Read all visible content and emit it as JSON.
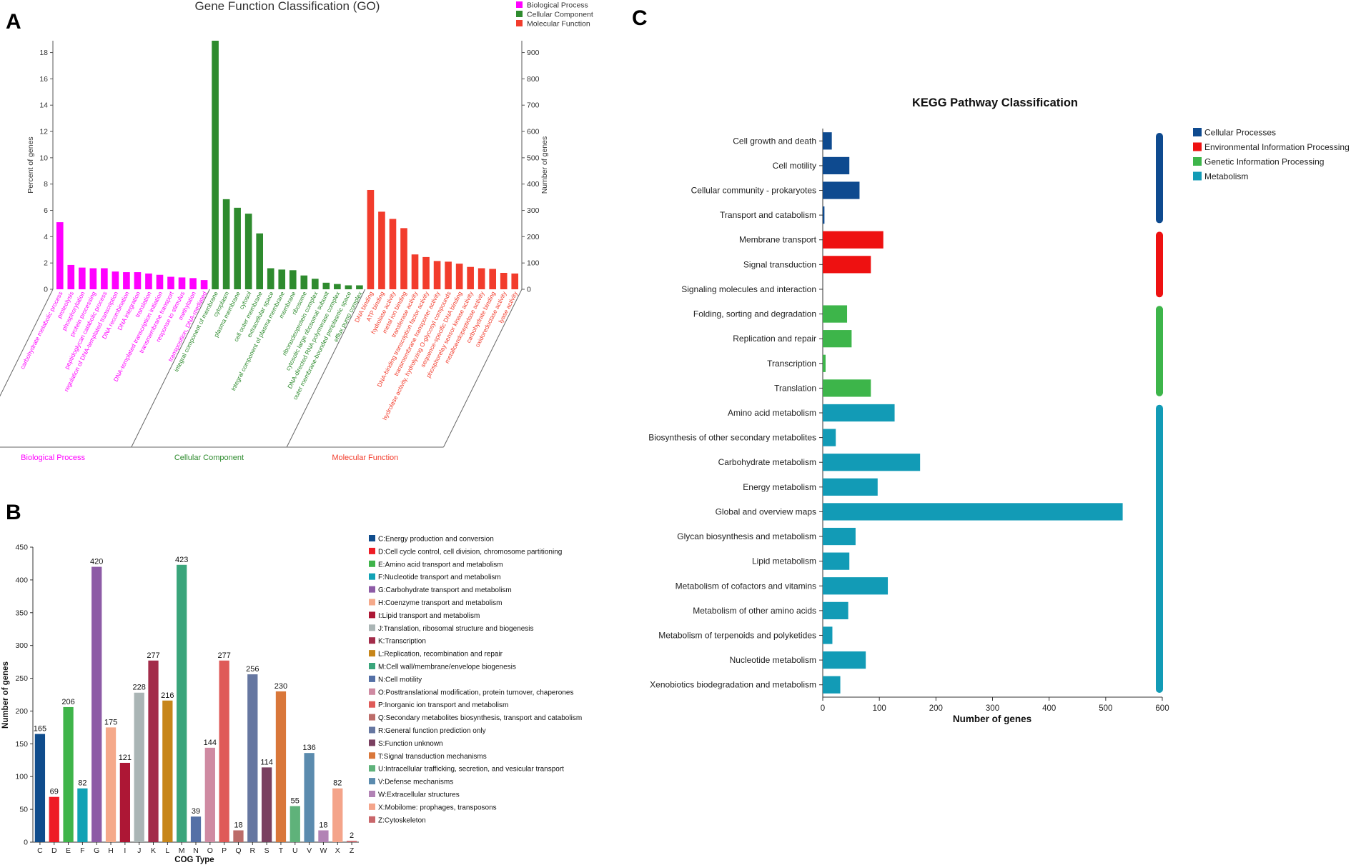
{
  "panel_labels": {
    "a": "A",
    "b": "B",
    "c": "C"
  },
  "chart_data": [
    {
      "panel": "A",
      "type": "bar",
      "title": "Gene Function Classification (GO)",
      "ylabel_left": "Percent of genes",
      "ylabel_right": "Number of genes",
      "y_left_ticks": [
        0,
        2,
        4,
        6,
        8,
        10,
        12,
        14,
        16,
        18
      ],
      "y_right_ticks": [
        0,
        100,
        200,
        300,
        400,
        500,
        600,
        700,
        800,
        900
      ],
      "y_left_max": 18.9,
      "legend": [
        {
          "name": "Biological Process",
          "color": "#ff00ff"
        },
        {
          "name": "Cellular Component",
          "color": "#2e8b2e"
        },
        {
          "name": "Molecular Function",
          "color": "#f23c2c"
        }
      ],
      "groups": [
        {
          "name": "Biological Process",
          "color": "#ff00ff",
          "categories": [
            "carbohydrate metabolic process",
            "proteolysis",
            "phosphorylation",
            "protein processing",
            "peptidoglycan catabolic process",
            "regulation of DNA-templated transcription",
            "DNA recombination",
            "DNA integration",
            "translation",
            "DNA-templated transcription initiation",
            "transmembrane transport",
            "response to stimulus",
            "methylation",
            "transposition, DNA-mediated"
          ],
          "values": [
            5.1,
            1.85,
            1.65,
            1.6,
            1.6,
            1.35,
            1.3,
            1.3,
            1.2,
            1.1,
            0.95,
            0.9,
            0.85,
            0.7
          ]
        },
        {
          "name": "Cellular Component",
          "color": "#2e8b2e",
          "categories": [
            "integral component of membrane",
            "cytoplasm",
            "plasma membrane",
            "cytosol",
            "cell outer membrane",
            "extracellular space",
            "integral component of plasma membrane",
            "membrane",
            "ribosome",
            "ribonucleoprotein complex",
            "cytosolic large ribosomal subunit",
            "DNA-directed RNA polymerase complex",
            "outer membrane-bounded periplasmic space",
            "efflux pump complex"
          ],
          "values": [
            18.9,
            6.85,
            6.2,
            5.75,
            4.25,
            1.6,
            1.5,
            1.45,
            1.05,
            0.8,
            0.5,
            0.4,
            0.3,
            0.3
          ]
        },
        {
          "name": "Molecular Function",
          "color": "#f23c2c",
          "categories": [
            "DNA binding",
            "ATP binding",
            "hydrolase activity",
            "metal ion binding",
            "transferase activity",
            "DNA-binding transcription factor activity",
            "transmembrane transporter activity",
            "hydrolase activity, hydrolyzing O-glycosyl compounds",
            "sequence-specific DNA binding",
            "phosphorelay sensor kinase activity",
            "metalloendopeptidase activity",
            "carbohydrate binding",
            "oxidoreductase activity",
            "lyase activity"
          ],
          "values": [
            7.55,
            5.9,
            5.35,
            4.65,
            2.65,
            2.45,
            2.15,
            2.1,
            1.95,
            1.7,
            1.6,
            1.55,
            1.25,
            1.2
          ]
        }
      ]
    },
    {
      "panel": "B",
      "type": "bar",
      "xlabel": "COG Type",
      "ylabel": "Number of genes",
      "ylim": [
        0,
        450
      ],
      "y_ticks": [
        0,
        50,
        100,
        150,
        200,
        250,
        300,
        350,
        400,
        450
      ],
      "categories": [
        "C",
        "D",
        "E",
        "F",
        "G",
        "H",
        "I",
        "J",
        "K",
        "L",
        "M",
        "N",
        "O",
        "P",
        "Q",
        "R",
        "S",
        "T",
        "U",
        "V",
        "W",
        "X",
        "Z"
      ],
      "values": [
        165,
        69,
        206,
        82,
        420,
        175,
        121,
        228,
        277,
        216,
        423,
        39,
        144,
        277,
        18,
        256,
        114,
        230,
        55,
        136,
        18,
        82,
        2
      ],
      "value_labels": [
        "165",
        "69",
        "206",
        "82",
        "420",
        "175",
        "121",
        "228",
        "277",
        "216",
        "423",
        "39",
        "144",
        "277",
        "18",
        "256",
        "114",
        "230",
        "55",
        "136",
        "18",
        "82",
        "2"
      ],
      "colors": [
        "#0f4c8c",
        "#ee1c25",
        "#3fb44a",
        "#11a2b5",
        "#8d5ba6",
        "#f5a98a",
        "#ad1735",
        "#aab5b5",
        "#a32c4a",
        "#c7861a",
        "#3aa57b",
        "#5470a6",
        "#cf8aa2",
        "#df5a58",
        "#bc6c69",
        "#6677a1",
        "#7a4060",
        "#d9773a",
        "#5fb27a",
        "#5b8bae",
        "#b283b5",
        "#f4a48a",
        "#c9666a"
      ],
      "legend": [
        "C:Energy production and conversion",
        "D:Cell cycle control, cell division, chromosome partitioning",
        "E:Amino acid transport and metabolism",
        "F:Nucleotide transport and metabolism",
        "G:Carbohydrate transport and metabolism",
        "H:Coenzyme transport and metabolism",
        "I:Lipid transport and metabolism",
        "J:Translation, ribosomal structure and biogenesis",
        "K:Transcription",
        "L:Replication, recombination and repair",
        "M:Cell wall/membrane/envelope biogenesis",
        "N:Cell motility",
        "O:Posttranslational modification, protein turnover, chaperones",
        "P:Inorganic ion transport and metabolism",
        "Q:Secondary metabolites biosynthesis, transport and catabolism",
        "R:General function prediction only",
        "S:Function unknown",
        "T:Signal transduction mechanisms",
        "U:Intracellular trafficking, secretion, and vesicular transport",
        "V:Defense mechanisms",
        "W:Extracellular structures",
        "X:Mobilome: prophages, transposons",
        "Z:Cytoskeleton"
      ]
    },
    {
      "panel": "C",
      "type": "bar",
      "orientation": "horizontal",
      "title": "KEGG Pathway Classification",
      "xlabel": "Number of genes",
      "xlim": [
        0,
        600
      ],
      "x_ticks": [
        0,
        100,
        200,
        300,
        400,
        500,
        600
      ],
      "categories": [
        "Cell growth and death",
        "Cell motility",
        "Cellular community - prokaryotes",
        "Transport and catabolism",
        "Membrane transport",
        "Signal transduction",
        "Signaling molecules and interaction",
        "Folding, sorting and degradation",
        "Replication and repair",
        "Transcription",
        "Translation",
        "Amino acid metabolism",
        "Biosynthesis of other secondary metabolites",
        "Carbohydrate metabolism",
        "Energy metabolism",
        "Global and overview maps",
        "Glycan biosynthesis and metabolism",
        "Lipid metabolism",
        "Metabolism of cofactors and vitamins",
        "Metabolism of other amino acids",
        "Metabolism of terpenoids and polyketides",
        "Nucleotide metabolism",
        "Xenobiotics biodegradation and metabolism"
      ],
      "values": [
        16,
        47,
        65,
        3,
        107,
        85,
        0,
        43,
        51,
        5,
        85,
        127,
        23,
        172,
        97,
        530,
        58,
        47,
        115,
        45,
        17,
        76,
        31
      ],
      "group_index": [
        0,
        0,
        0,
        0,
        1,
        1,
        1,
        2,
        2,
        2,
        2,
        3,
        3,
        3,
        3,
        3,
        3,
        3,
        3,
        3,
        3,
        3,
        3
      ],
      "groups": [
        {
          "name": "Cellular Processes",
          "color": "#0e4a8f"
        },
        {
          "name": "Environmental Information Processing",
          "color": "#ee1111"
        },
        {
          "name": "Genetic Information Processing",
          "color": "#3db54a"
        },
        {
          "name": "Metabolism",
          "color": "#129bb6"
        }
      ]
    }
  ]
}
